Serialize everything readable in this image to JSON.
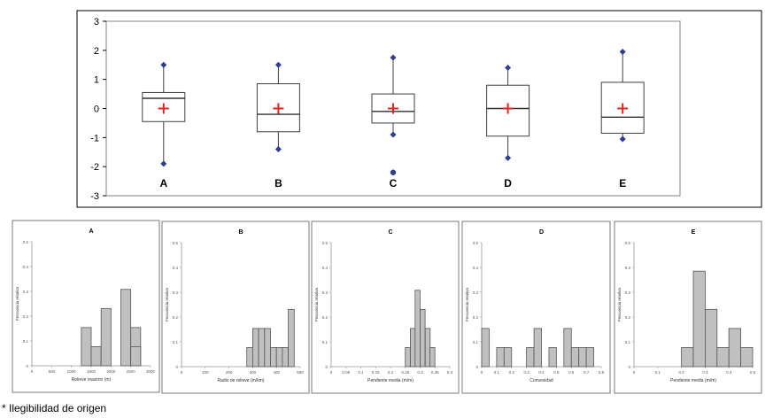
{
  "caption": "* Ilegibilidad de origen",
  "chart_data": [
    {
      "type": "box",
      "categories": [
        "A",
        "B",
        "C",
        "D",
        "E"
      ],
      "ylim": [
        -3,
        3
      ],
      "yticks": [
        "-3",
        "-2",
        "-1",
        "0",
        "1",
        "2",
        "3"
      ],
      "grid": false,
      "boxes": [
        {
          "label": "A",
          "whisker_low": -1.9,
          "q1": -0.45,
          "median": 0.35,
          "q3": 0.55,
          "whisker_high": 1.5,
          "mean": 0.0,
          "outliers": []
        },
        {
          "label": "B",
          "whisker_low": -1.4,
          "q1": -0.8,
          "median": -0.2,
          "q3": 0.85,
          "whisker_high": 1.5,
          "mean": 0.0,
          "outliers": []
        },
        {
          "label": "C",
          "whisker_low": -0.9,
          "q1": -0.5,
          "median": -0.1,
          "q3": 0.5,
          "whisker_high": 1.75,
          "mean": 0.0,
          "outliers": [
            -2.2
          ]
        },
        {
          "label": "D",
          "whisker_low": -1.7,
          "q1": -0.95,
          "median": 0.0,
          "q3": 0.8,
          "whisker_high": 1.4,
          "mean": 0.0,
          "outliers": []
        },
        {
          "label": "E",
          "whisker_low": -1.05,
          "q1": -0.85,
          "median": -0.3,
          "q3": 0.9,
          "whisker_high": 1.95,
          "mean": 0.0,
          "outliers": []
        }
      ]
    },
    {
      "type": "bar",
      "title": "A",
      "xlabel": "Relieve maximo (m)",
      "ylabel": "Frecuencia relativa",
      "xlim": [
        0,
        3000
      ],
      "xticks": [
        "0",
        "500",
        "1000",
        "1500",
        "2000",
        "2500",
        "3000"
      ],
      "ylim": [
        0,
        0.5
      ],
      "yticks": [
        "0",
        "0.1",
        "0.2",
        "0.3",
        "0.4",
        "0.5"
      ],
      "bin_width": 250,
      "bin_starts": [
        1250,
        1500,
        1750,
        2000,
        2250,
        2500
      ],
      "values": [
        0.154,
        0.077,
        0.231,
        0.0,
        0.308,
        0.154
      ],
      "extra_bins": [
        {
          "start": 2500,
          "value": 0.077
        }
      ]
    },
    {
      "type": "bar",
      "title": "B",
      "xlabel": "Radio de relieve (m/km)",
      "ylabel": "Frecuencia relativa",
      "xlim": [
        0,
        500
      ],
      "xticks": [
        "0",
        "100",
        "200",
        "300",
        "400",
        "500"
      ],
      "ylim": [
        0,
        0.5
      ],
      "yticks": [
        "0",
        "0.1",
        "0.2",
        "0.3",
        "0.4",
        "0.5"
      ],
      "bin_width": 25,
      "bin_starts": [
        275,
        300,
        325,
        350,
        375,
        400,
        425,
        450
      ],
      "values": [
        0.077,
        0.154,
        0.154,
        0.154,
        0.077,
        0.077,
        0.077,
        0.231
      ]
    },
    {
      "type": "bar",
      "title": "C",
      "xlabel": "Pendiente media (m/m)",
      "ylabel": "Frecuencia relativa",
      "xlim": [
        0,
        0.4
      ],
      "xticks": [
        "0",
        "0.05",
        "0.1",
        "0.15",
        "0.2",
        "0.25",
        "0.3",
        "0.35",
        "0.4"
      ],
      "ylim": [
        0,
        0.5
      ],
      "yticks": [
        "0",
        "0.1",
        "0.2",
        "0.3",
        "0.4",
        "0.5"
      ],
      "bin_width": 0.0167,
      "bin_starts": [
        0.25,
        0.267,
        0.283,
        0.3,
        0.317,
        0.333
      ],
      "values": [
        0.077,
        0.154,
        0.308,
        0.231,
        0.154,
        0.077
      ]
    },
    {
      "type": "bar",
      "title": "D",
      "xlabel": "Convexidad",
      "ylabel": "Frecuencia relativa",
      "xlim": [
        0,
        0.8
      ],
      "xticks": [
        "0",
        "0.1",
        "0.2",
        "0.3",
        "0.4",
        "0.5",
        "0.6",
        "0.7",
        "0.8"
      ],
      "ylim": [
        0,
        0.5
      ],
      "yticks": [
        "0",
        "0.1",
        "0.2",
        "0.3",
        "0.4",
        "0.5"
      ],
      "bin_width": 0.05,
      "bin_starts": [
        0.0,
        0.1,
        0.15,
        0.3,
        0.35,
        0.45,
        0.55,
        0.6,
        0.65,
        0.7
      ],
      "values": [
        0.154,
        0.077,
        0.077,
        0.077,
        0.154,
        0.077,
        0.154,
        0.077,
        0.077,
        0.077
      ]
    },
    {
      "type": "bar",
      "title": "E",
      "xlabel": "Pendiente media (m/m)",
      "ylabel": "Frecuencia relativa",
      "xlim": [
        0,
        0.5
      ],
      "xticks": [
        "0",
        "0.1",
        "0.2",
        "0.3",
        "0.4",
        "0.5"
      ],
      "ylim": [
        0,
        0.5
      ],
      "yticks": [
        "0",
        "0.1",
        "0.2",
        "0.3",
        "0.4",
        "0.5"
      ],
      "bin_width": 0.05,
      "bin_starts": [
        0.2,
        0.25,
        0.3,
        0.35,
        0.4,
        0.45
      ],
      "values": [
        0.077,
        0.385,
        0.231,
        0.077,
        0.154,
        0.077
      ]
    }
  ],
  "colors": {
    "box_stroke": "#404040",
    "mean_marker": "#e8231f",
    "whisker_end_marker": "#2c3d9a",
    "outlier_marker": "#2c3d9a",
    "bar_fill": "#c0c0c0",
    "bar_stroke": "#555555"
  }
}
